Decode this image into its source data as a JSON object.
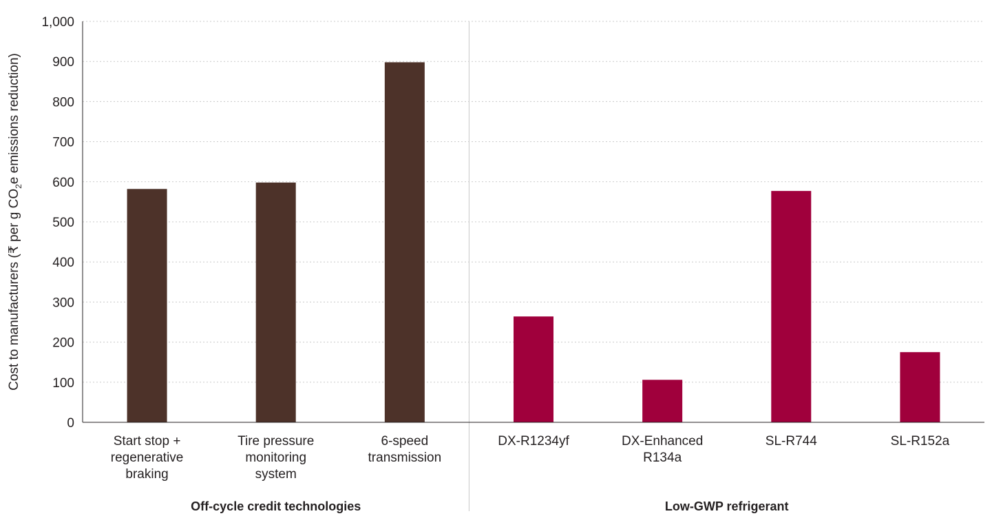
{
  "chart_data": {
    "type": "bar",
    "ylabel": {
      "prefix": "Cost to manufacturers (₹ per g CO",
      "subscript": "2",
      "suffix": "e emissions reduction)"
    },
    "ylim": [
      0,
      1000
    ],
    "yticks": [
      0,
      100,
      200,
      300,
      400,
      500,
      600,
      700,
      800,
      900,
      1000
    ],
    "ytick_labels": [
      "0",
      "100",
      "200",
      "300",
      "400",
      "500",
      "600",
      "700",
      "800",
      "900",
      "1,000"
    ],
    "grid": true,
    "groups": [
      {
        "name": "Off-cycle credit technologies",
        "color": "#4d3229",
        "categories": [
          {
            "label": [
              "Start stop +",
              "regenerative",
              "braking"
            ],
            "value": 582
          },
          {
            "label": [
              "Tire pressure",
              "monitoring",
              "system"
            ],
            "value": 598
          },
          {
            "label": [
              "6-speed",
              "transmission"
            ],
            "value": 898
          }
        ]
      },
      {
        "name": "Low-GWP refrigerant",
        "color": "#a0003c",
        "categories": [
          {
            "label": [
              "DX-R1234yf"
            ],
            "value": 264
          },
          {
            "label": [
              "DX-Enhanced",
              "R134a"
            ],
            "value": 106
          },
          {
            "label": [
              "SL-R744"
            ],
            "value": 577
          },
          {
            "label": [
              "SL-R152a"
            ],
            "value": 175
          }
        ]
      }
    ]
  }
}
